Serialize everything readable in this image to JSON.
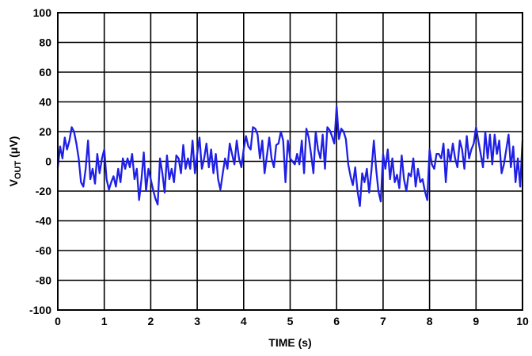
{
  "chart_data": {
    "type": "line",
    "title": "",
    "xlabel": "TIME (s)",
    "ylabel": {
      "prefix": "V",
      "subscript": "OUT",
      "suffix": " (μV)"
    },
    "xlim": [
      0,
      10
    ],
    "ylim": [
      -100,
      100
    ],
    "x_ticks": [
      0,
      1,
      2,
      3,
      4,
      5,
      6,
      7,
      8,
      9,
      10
    ],
    "x_tick_labels": [
      "0",
      "1",
      "2",
      "3",
      "4",
      "5",
      "6",
      "7",
      "8",
      "9",
      "10"
    ],
    "y_ticks": [
      100,
      80,
      60,
      40,
      20,
      0,
      -20,
      -40,
      -60,
      -80,
      -100
    ],
    "y_tick_labels": [
      "100",
      "80",
      "60",
      "40",
      "20",
      "0",
      "-20",
      "-40",
      "-60",
      "-80",
      "-100"
    ],
    "grid": true,
    "line_color": "#1f1fe6",
    "series": [
      {
        "x": [
          0,
          0.05,
          0.1,
          0.15,
          0.2,
          0.25,
          0.3,
          0.35,
          0.4,
          0.45,
          0.5,
          0.55,
          0.6,
          0.65,
          0.7,
          0.75,
          0.8,
          0.85,
          0.9,
          0.95,
          1.0,
          1.05,
          1.1,
          1.15,
          1.2,
          1.25,
          1.3,
          1.35,
          1.4,
          1.45,
          1.5,
          1.55,
          1.6,
          1.65,
          1.7,
          1.75,
          1.8,
          1.85,
          1.9,
          1.95,
          2.0,
          2.05,
          2.1,
          2.15,
          2.2,
          2.25,
          2.3,
          2.35,
          2.4,
          2.45,
          2.5,
          2.55,
          2.6,
          2.65,
          2.7,
          2.75,
          2.8,
          2.85,
          2.9,
          2.95,
          3.0,
          3.05,
          3.1,
          3.15,
          3.2,
          3.25,
          3.3,
          3.35,
          3.4,
          3.45,
          3.5,
          3.55,
          3.6,
          3.65,
          3.7,
          3.75,
          3.8,
          3.85,
          3.9,
          3.95,
          4.0,
          4.05,
          4.1,
          4.15,
          4.2,
          4.25,
          4.3,
          4.35,
          4.4,
          4.45,
          4.5,
          4.55,
          4.6,
          4.65,
          4.7,
          4.75,
          4.8,
          4.85,
          4.9,
          4.95,
          5.0,
          5.05,
          5.1,
          5.15,
          5.2,
          5.25,
          5.3,
          5.35,
          5.4,
          5.45,
          5.5,
          5.55,
          5.6,
          5.65,
          5.7,
          5.75,
          5.8,
          5.85,
          5.9,
          5.95,
          6.0,
          6.05,
          6.1,
          6.15,
          6.2,
          6.25,
          6.3,
          6.35,
          6.4,
          6.45,
          6.5,
          6.55,
          6.6,
          6.65,
          6.7,
          6.75,
          6.8,
          6.85,
          6.9,
          6.95,
          7.0,
          7.05,
          7.1,
          7.15,
          7.2,
          7.25,
          7.3,
          7.35,
          7.4,
          7.45,
          7.5,
          7.55,
          7.6,
          7.65,
          7.7,
          7.75,
          7.8,
          7.85,
          7.9,
          7.95,
          8.0,
          8.05,
          8.1,
          8.15,
          8.2,
          8.25,
          8.3,
          8.35,
          8.4,
          8.45,
          8.5,
          8.55,
          8.6,
          8.65,
          8.7,
          8.75,
          8.8,
          8.85,
          8.9,
          8.95,
          9.0,
          9.05,
          9.1,
          9.15,
          9.2,
          9.25,
          9.3,
          9.35,
          9.4,
          9.45,
          9.5,
          9.55,
          9.6,
          9.65,
          9.7,
          9.75,
          9.8,
          9.85,
          9.9,
          9.95,
          10.0
        ],
        "y": [
          -4,
          10,
          2,
          16,
          8,
          14,
          23,
          20,
          12,
          2,
          -14,
          -17,
          -5,
          14,
          -12,
          -5,
          -15,
          5,
          -8,
          2,
          8,
          -12,
          -19,
          -14,
          -10,
          -17,
          -5,
          -14,
          2,
          -5,
          2,
          -4,
          5,
          -12,
          -5,
          -26,
          -12,
          6,
          -20,
          -5,
          -12,
          -19,
          -25,
          -29,
          2,
          -8,
          -21,
          4,
          -12,
          -5,
          -14,
          4,
          2,
          -8,
          11,
          -5,
          2,
          -5,
          14,
          -8,
          5,
          16,
          -5,
          2,
          12,
          -4,
          8,
          -8,
          5,
          -12,
          -19,
          -8,
          2,
          -5,
          12,
          5,
          -2,
          14,
          2,
          -4,
          8,
          17,
          10,
          8,
          23,
          22,
          18,
          2,
          14,
          -8,
          4,
          16,
          2,
          -4,
          11,
          12,
          20,
          14,
          -14,
          14,
          2,
          0,
          -2,
          5,
          -2,
          14,
          -8,
          22,
          16,
          5,
          -8,
          20,
          8,
          2,
          18,
          -5,
          23,
          21,
          17,
          12,
          37,
          15,
          22,
          20,
          15,
          -2,
          -10,
          -16,
          -4,
          -20,
          -30,
          -8,
          -14,
          -5,
          -21,
          -6,
          14,
          -5,
          -20,
          -27,
          5,
          -5,
          8,
          -12,
          2,
          -14,
          -9,
          -18,
          4,
          -12,
          -20,
          -8,
          -10,
          2,
          -17,
          -5,
          -14,
          -12,
          -20,
          -26,
          8,
          -2,
          -5,
          5,
          5,
          2,
          12,
          -14,
          8,
          0,
          12,
          2,
          -4,
          14,
          8,
          -5,
          17,
          2,
          8,
          12,
          23,
          14,
          5,
          -4,
          20,
          2,
          18,
          -2,
          18,
          5,
          14,
          -8,
          -2,
          8,
          18,
          -4,
          10,
          -14,
          2,
          -17,
          14
        ]
      }
    ]
  }
}
